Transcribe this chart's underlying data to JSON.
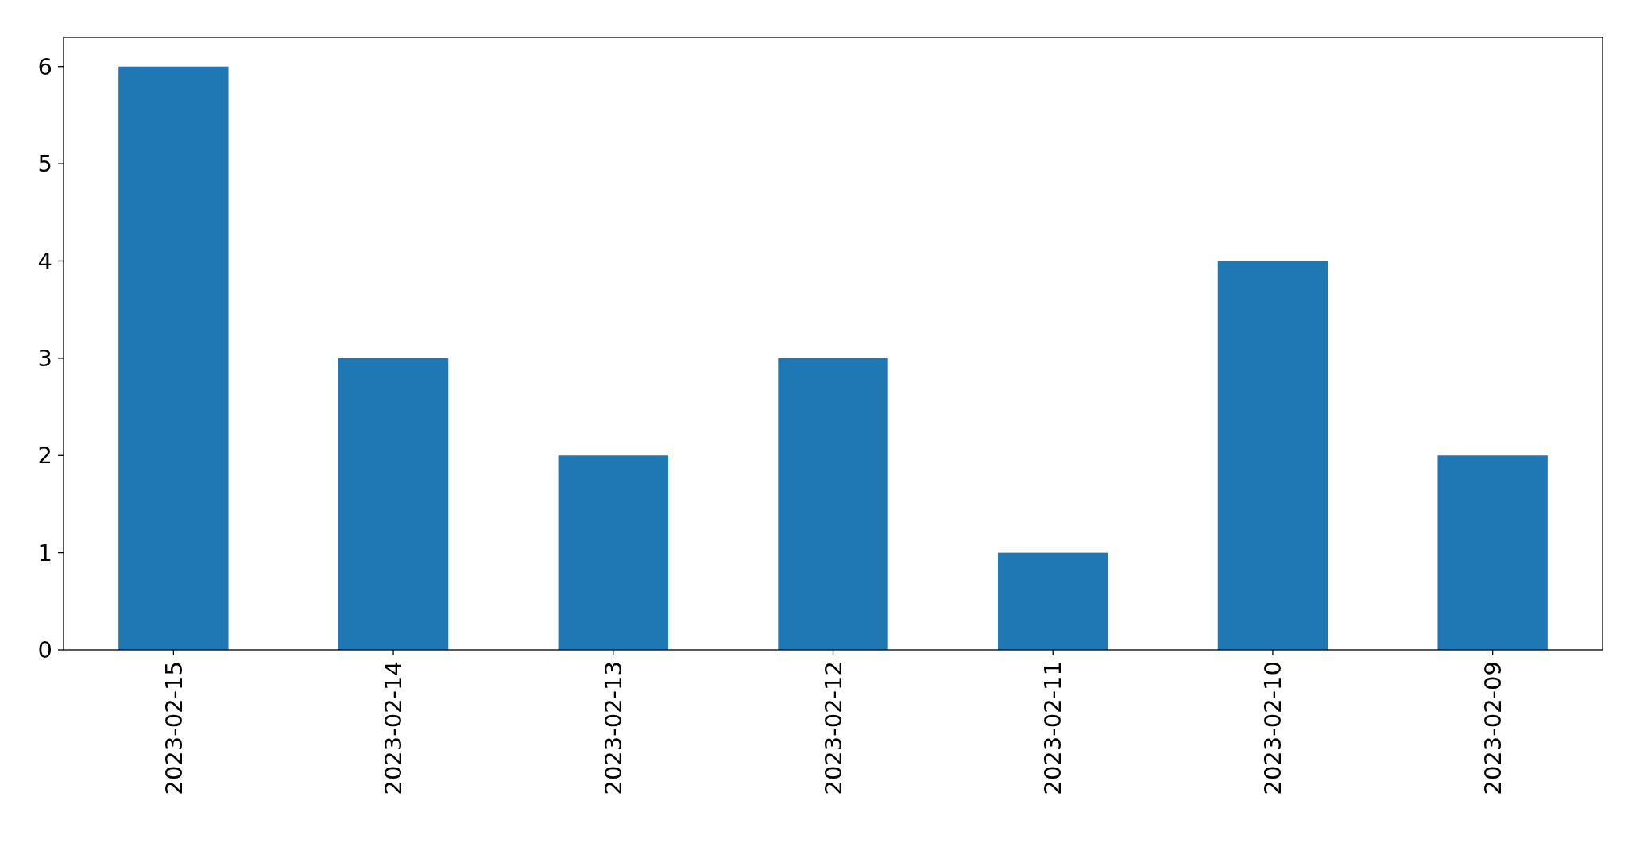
{
  "chart_data": {
    "type": "bar",
    "categories": [
      "2023-02-15",
      "2023-02-14",
      "2023-02-13",
      "2023-02-12",
      "2023-02-11",
      "2023-02-10",
      "2023-02-09"
    ],
    "values": [
      6,
      3,
      2,
      3,
      1,
      4,
      2
    ],
    "color": "#1f77b4",
    "ylim": [
      0,
      6.3
    ],
    "yticks": [
      0,
      1,
      2,
      3,
      4,
      5,
      6
    ],
    "grid": false
  }
}
